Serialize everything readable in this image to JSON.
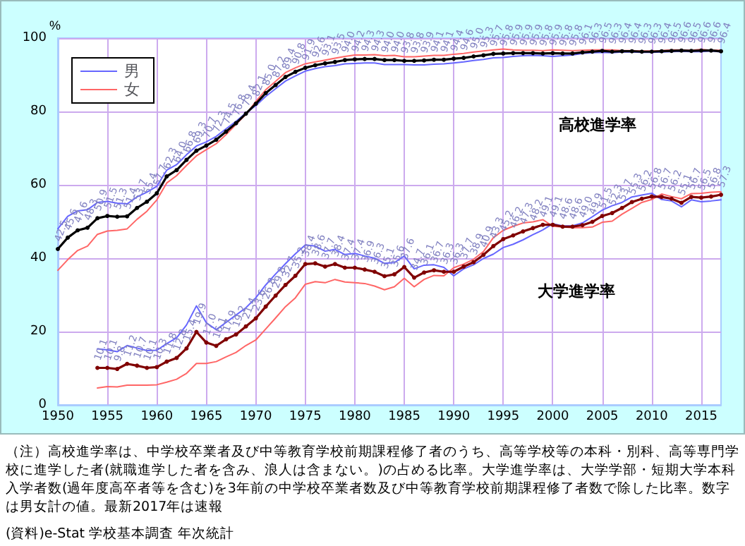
{
  "chart_data": {
    "type": "line",
    "ylabel": "%",
    "xlim": [
      1950,
      2017
    ],
    "xticks": [
      1950,
      1955,
      1960,
      1965,
      1970,
      1975,
      1980,
      1985,
      1990,
      1995,
      2000,
      2005,
      2010,
      2015
    ],
    "ylim": [
      0,
      100
    ],
    "yticks": [
      0,
      20,
      40,
      60,
      80,
      100
    ],
    "grid": true,
    "legend": "top left",
    "line_style": "solid",
    "series": [
      {
        "name": "男",
        "color": "#6666ff",
        "marker": "none",
        "x": [
          1950,
          1951,
          1952,
          1953,
          1954,
          1955,
          1956,
          1957,
          1958,
          1959,
          1960,
          1961,
          1962,
          1963,
          1964,
          1965,
          1966,
          1967,
          1968,
          1969,
          1970,
          1971,
          1972,
          1973,
          1974,
          1975,
          1976,
          1977,
          1978,
          1979,
          1980,
          1981,
          1982,
          1983,
          1984,
          1985,
          1986,
          1987,
          1988,
          1989,
          1990,
          1991,
          1992,
          1993,
          1994,
          1995,
          1996,
          1997,
          1998,
          1999,
          2000,
          2001,
          2002,
          2003,
          2004,
          2005,
          2006,
          2007,
          2008,
          2009,
          2010,
          2011,
          2012,
          2013,
          2014,
          2015,
          2016,
          2017
        ],
        "values": [
          48.0,
          51.4,
          52.9,
          53.2,
          55.2,
          55.5,
          55.0,
          54.8,
          56.7,
          58.0,
          59.6,
          64.0,
          65.5,
          68.2,
          70.6,
          71.7,
          73.2,
          75.3,
          77.3,
          79.6,
          81.6,
          84.1,
          86.2,
          88.3,
          89.7,
          91.0,
          91.7,
          92.2,
          92.5,
          93.0,
          93.1,
          93.2,
          93.2,
          92.8,
          92.8,
          92.8,
          92.7,
          92.7,
          92.9,
          93.0,
          93.2,
          93.5,
          93.9,
          94.2,
          94.6,
          94.7,
          95.0,
          95.2,
          95.3,
          95.2,
          95.0,
          95.2,
          95.4,
          95.8,
          96.0,
          96.1,
          96.0,
          96.2,
          96.2,
          96.1,
          96.1,
          96.2,
          96.3,
          96.4,
          96.3,
          96.3,
          96.5,
          96.2
        ]
      },
      {
        "name": "女",
        "color": "#ff6666",
        "marker": "none",
        "x": [
          1950,
          1951,
          1952,
          1953,
          1954,
          1955,
          1956,
          1957,
          1958,
          1959,
          1960,
          1961,
          1962,
          1963,
          1964,
          1965,
          1966,
          1967,
          1968,
          1969,
          1970,
          1971,
          1972,
          1973,
          1974,
          1975,
          1976,
          1977,
          1978,
          1979,
          1980,
          1981,
          1982,
          1983,
          1984,
          1985,
          1986,
          1987,
          1988,
          1989,
          1990,
          1991,
          1992,
          1993,
          1994,
          1995,
          1996,
          1997,
          1998,
          1999,
          2000,
          2001,
          2002,
          2003,
          2004,
          2005,
          2006,
          2007,
          2008,
          2009,
          2010,
          2011,
          2012,
          2013,
          2014,
          2015,
          2016,
          2017
        ],
        "values": [
          36.7,
          39.6,
          42.1,
          43.3,
          46.5,
          47.4,
          47.6,
          48.0,
          50.6,
          52.8,
          55.9,
          60.5,
          62.5,
          65.3,
          67.9,
          69.6,
          71.2,
          73.7,
          76.5,
          79.2,
          82.7,
          85.9,
          88.2,
          90.6,
          91.9,
          93.0,
          93.5,
          94.0,
          94.5,
          95.0,
          95.4,
          95.4,
          95.5,
          95.2,
          95.3,
          94.9,
          94.9,
          95.1,
          95.3,
          95.3,
          95.6,
          95.8,
          96.2,
          96.5,
          96.8,
          97.0,
          96.8,
          96.7,
          96.7,
          96.6,
          96.8,
          96.7,
          96.6,
          96.7,
          96.8,
          96.8,
          96.8,
          96.6,
          96.6,
          96.5,
          96.5,
          96.6,
          96.8,
          96.8,
          96.7,
          96.9,
          96.7,
          96.7
        ]
      },
      {
        "color": "#000000",
        "marker": "circle",
        "x": [
          1950,
          1951,
          1952,
          1953,
          1954,
          1955,
          1956,
          1957,
          1958,
          1959,
          1960,
          1961,
          1962,
          1963,
          1964,
          1965,
          1966,
          1967,
          1968,
          1969,
          1970,
          1971,
          1972,
          1973,
          1974,
          1975,
          1976,
          1977,
          1978,
          1979,
          1980,
          1981,
          1982,
          1983,
          1984,
          1985,
          1986,
          1987,
          1988,
          1989,
          1990,
          1991,
          1992,
          1993,
          1994,
          1995,
          1996,
          1997,
          1998,
          1999,
          2000,
          2001,
          2002,
          2003,
          2004,
          2005,
          2006,
          2007,
          2008,
          2009,
          2010,
          2011,
          2012,
          2013,
          2014,
          2015,
          2016,
          2017
        ],
        "values": [
          42.5,
          45.6,
          47.6,
          48.3,
          50.9,
          51.5,
          51.3,
          51.4,
          53.7,
          55.4,
          57.7,
          62.3,
          64.0,
          66.8,
          69.3,
          70.7,
          72.3,
          74.5,
          76.8,
          79.4,
          82.1,
          85.0,
          87.2,
          89.4,
          90.8,
          91.9,
          92.6,
          93.1,
          93.5,
          94.0,
          94.2,
          94.3,
          94.3,
          94.0,
          94.0,
          93.8,
          93.8,
          93.9,
          94.1,
          94.1,
          94.4,
          94.6,
          95.0,
          95.3,
          95.7,
          95.8,
          95.9,
          95.9,
          95.9,
          95.8,
          95.9,
          95.8,
          95.8,
          96.1,
          96.3,
          96.5,
          96.3,
          96.4,
          96.4,
          96.3,
          96.3,
          96.4,
          96.5,
          96.6,
          96.5,
          96.6,
          96.6,
          96.4
        ],
        "value_labels": [
          "42.5",
          "45.6",
          "47.6",
          "48.3",
          "50.9",
          "51.5",
          "51.3",
          "51.4",
          "53.7",
          "55.4",
          "57.7",
          "62.3",
          "64.0",
          "66.8",
          "69.3",
          "70.7",
          "72.3",
          "74.5",
          "76.8",
          "79.4",
          "82.1",
          "85.0",
          "87.2",
          "89.4",
          "90.8",
          "91.9",
          "92.6",
          "93.1",
          "93.5",
          "94.0",
          "94.2",
          "94.3",
          "94.3",
          "94.0",
          "94.0",
          "93.8",
          "93.8",
          "93.9",
          "94.1",
          "94.1",
          "94.4",
          "94.6",
          "95.0",
          "95.3",
          "95.7",
          "95.8",
          "95.9",
          "95.9",
          "95.9",
          "95.8",
          "95.9",
          "95.8",
          "95.8",
          "96.1",
          "96.3",
          "96.5",
          "96.3",
          "96.4",
          "96.4",
          "96.3",
          "96.3",
          "96.4",
          "96.5",
          "96.6",
          "96.5",
          "96.6",
          "96.6",
          "96.4"
        ]
      },
      {
        "color": "#6666ff",
        "marker": "none",
        "x": [
          1954,
          1955,
          1956,
          1957,
          1958,
          1959,
          1960,
          1961,
          1962,
          1963,
          1964,
          1965,
          1966,
          1967,
          1968,
          1969,
          1970,
          1971,
          1972,
          1973,
          1974,
          1975,
          1976,
          1977,
          1978,
          1979,
          1980,
          1981,
          1982,
          1983,
          1984,
          1985,
          1986,
          1987,
          1988,
          1989,
          1990,
          1991,
          1992,
          1993,
          1994,
          1995,
          1996,
          1997,
          1998,
          1999,
          2000,
          2001,
          2002,
          2003,
          2004,
          2005,
          2006,
          2007,
          2008,
          2009,
          2010,
          2011,
          2012,
          2013,
          2014,
          2015,
          2016,
          2017
        ],
        "values": [
          15.3,
          15.0,
          14.5,
          16.2,
          15.5,
          14.8,
          14.9,
          16.7,
          18.3,
          21.8,
          27.0,
          22.4,
          20.5,
          22.5,
          24.5,
          26.5,
          29.2,
          32.7,
          35.7,
          38.5,
          41.2,
          43.6,
          43.3,
          41.9,
          42.4,
          41.0,
          41.3,
          40.6,
          40.0,
          38.6,
          38.8,
          40.6,
          37.1,
          38.1,
          38.2,
          37.5,
          35.2,
          37.1,
          38.2,
          39.9,
          41.1,
          42.9,
          43.8,
          45.0,
          46.4,
          47.7,
          49.4,
          48.8,
          48.8,
          49.6,
          51.3,
          53.1,
          54.3,
          55.2,
          56.7,
          57.2,
          57.7,
          56.0,
          55.6,
          54.0,
          55.9,
          55.4,
          55.6,
          55.9
        ]
      },
      {
        "color": "#ff6666",
        "marker": "none",
        "x": [
          1954,
          1955,
          1956,
          1957,
          1958,
          1959,
          1960,
          1961,
          1962,
          1963,
          1964,
          1965,
          1966,
          1967,
          1968,
          1969,
          1970,
          1971,
          1972,
          1973,
          1974,
          1975,
          1976,
          1977,
          1978,
          1979,
          1980,
          1981,
          1982,
          1983,
          1984,
          1985,
          1986,
          1987,
          1988,
          1989,
          1990,
          1991,
          1992,
          1993,
          1994,
          1995,
          1996,
          1997,
          1998,
          1999,
          2000,
          2001,
          2002,
          2003,
          2004,
          2005,
          2006,
          2007,
          2008,
          2009,
          2010,
          2011,
          2012,
          2013,
          2014,
          2015,
          2016,
          2017
        ],
        "values": [
          4.6,
          5.0,
          4.9,
          5.4,
          5.4,
          5.4,
          5.5,
          6.2,
          7.0,
          8.6,
          11.3,
          11.3,
          11.8,
          13.1,
          14.3,
          16.2,
          17.7,
          20.7,
          23.7,
          26.8,
          29.2,
          32.9,
          33.6,
          33.3,
          34.2,
          33.5,
          33.3,
          33.1,
          32.4,
          31.4,
          32.2,
          34.5,
          32.2,
          34.2,
          35.3,
          35.2,
          37.4,
          38.4,
          39.7,
          41.8,
          45.6,
          47.6,
          48.7,
          49.6,
          49.9,
          50.5,
          48.7,
          48.5,
          48.3,
          48.3,
          48.5,
          49.8,
          50.1,
          52.0,
          53.6,
          55.2,
          56.0,
          57.5,
          56.8,
          56.2,
          57.6,
          57.7,
          58.0,
          58.1
        ]
      },
      {
        "color": "#800000",
        "marker": "circle",
        "x": [
          1954,
          1955,
          1956,
          1957,
          1958,
          1959,
          1960,
          1961,
          1962,
          1963,
          1964,
          1965,
          1966,
          1967,
          1968,
          1969,
          1970,
          1971,
          1972,
          1973,
          1974,
          1975,
          1976,
          1977,
          1978,
          1979,
          1980,
          1981,
          1982,
          1983,
          1984,
          1985,
          1986,
          1987,
          1988,
          1989,
          1990,
          1991,
          1992,
          1993,
          1994,
          1995,
          1996,
          1997,
          1998,
          1999,
          2000,
          2001,
          2002,
          2003,
          2004,
          2005,
          2006,
          2007,
          2008,
          2009,
          2010,
          2011,
          2012,
          2013,
          2014,
          2015,
          2016,
          2017
        ],
        "values": [
          10.1,
          10.1,
          9.8,
          11.2,
          10.7,
          10.1,
          10.3,
          11.8,
          12.8,
          15.4,
          19.9,
          17.0,
          16.1,
          17.9,
          19.2,
          21.4,
          23.6,
          26.8,
          29.8,
          32.7,
          35.2,
          38.4,
          38.6,
          37.7,
          38.4,
          37.4,
          37.4,
          36.9,
          36.3,
          35.1,
          35.6,
          37.6,
          34.7,
          36.1,
          36.7,
          36.3,
          36.3,
          37.7,
          38.9,
          40.9,
          43.3,
          45.2,
          46.2,
          47.3,
          48.2,
          49.1,
          49.1,
          48.6,
          48.6,
          49.0,
          49.9,
          51.5,
          52.3,
          53.7,
          55.3,
          56.2,
          56.8,
          56.7,
          56.2,
          55.1,
          56.7,
          56.5,
          56.8,
          57.3
        ],
        "value_labels": [
          "10.1",
          "10.1",
          "9.8",
          "11.2",
          "10.7",
          "10.1",
          "10.3",
          "11.8",
          "12.8",
          "15.4",
          "19.9",
          "17.0",
          "16.1",
          "17.9",
          "19.2",
          "21.4",
          "23.6",
          "26.8",
          "29.8",
          "32.7",
          "35.2",
          "38.4",
          "38.6",
          "37.7",
          "38.4",
          "37.4",
          "37.4",
          "36.9",
          "36.3",
          "35.1",
          "35.6",
          "37.6",
          "34.7",
          "36.1",
          "36.7",
          "36.3",
          "36.3",
          "37.7",
          "38.9",
          "40.9",
          "43.3",
          "45.2",
          "46.2",
          "47.3",
          "48.2",
          "49.1",
          "49.1",
          "48.6",
          "48.6",
          "49.0",
          "49.9",
          "51.5",
          "52.3",
          "53.7",
          "55.3",
          "56.2",
          "56.8",
          "56.7",
          "56.2",
          "55.1",
          "56.7",
          "56.5",
          "56.8",
          "57.3"
        ]
      }
    ],
    "annotations": [
      "高校進学率",
      "大学進学率",
      "（注）高校進学率は、中学校卒業者及び中等教育学校前期課程修了者のうち、高等学校等の本科・別科、高等専門学校に進学した者(就職進学した者を含み、浪人は含まない。)の占める比率。大学進学率は、大学学部・短期大学本科入学者数(過年度高卒者等を含む)を3年前の中学校卒業者数及び中等教育学校前期課程修了者数で除した比率。数字は男女計の値。最新2017年は速報",
      "(資料)e-Stat 学校基本調査 年次統計"
    ]
  }
}
